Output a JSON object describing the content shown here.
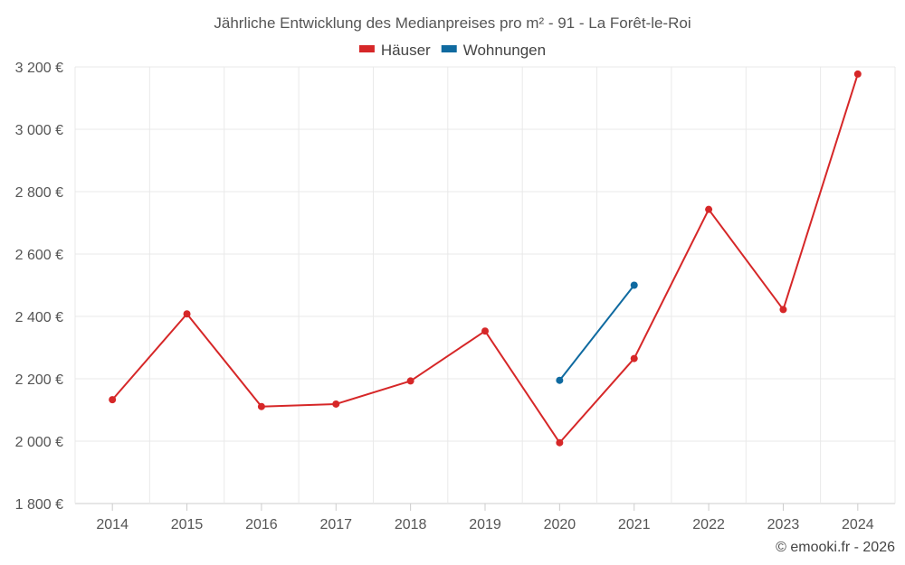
{
  "chart_data": {
    "type": "line",
    "title": "Jährliche Entwicklung des Medianpreises pro m² - 91 - La Forêt-le-Roi",
    "xlabel": "",
    "ylabel": "",
    "categories": [
      "2014",
      "2015",
      "2016",
      "2017",
      "2018",
      "2019",
      "2020",
      "2021",
      "2022",
      "2023",
      "2024"
    ],
    "ylim": [
      1800,
      3200
    ],
    "yticks": [
      1800,
      2000,
      2200,
      2400,
      2600,
      2800,
      3000,
      3200
    ],
    "ytick_labels": [
      "1 800 €",
      "2 000 €",
      "2 200 €",
      "2 400 €",
      "2 600 €",
      "2 800 €",
      "3 000 €",
      "3 200 €"
    ],
    "grid": true,
    "legend_position": "top-center",
    "series": [
      {
        "name": "Häuser",
        "color": "#d62728",
        "values": [
          2133,
          2408,
          2111,
          2119,
          2193,
          2353,
          1995,
          2265,
          2743,
          2422,
          3177
        ]
      },
      {
        "name": "Wohnungen",
        "color": "#0f6aa0",
        "values": [
          null,
          null,
          null,
          null,
          null,
          null,
          2195,
          2500,
          null,
          null,
          null
        ]
      }
    ],
    "credit": "© emooki.fr - 2026"
  }
}
